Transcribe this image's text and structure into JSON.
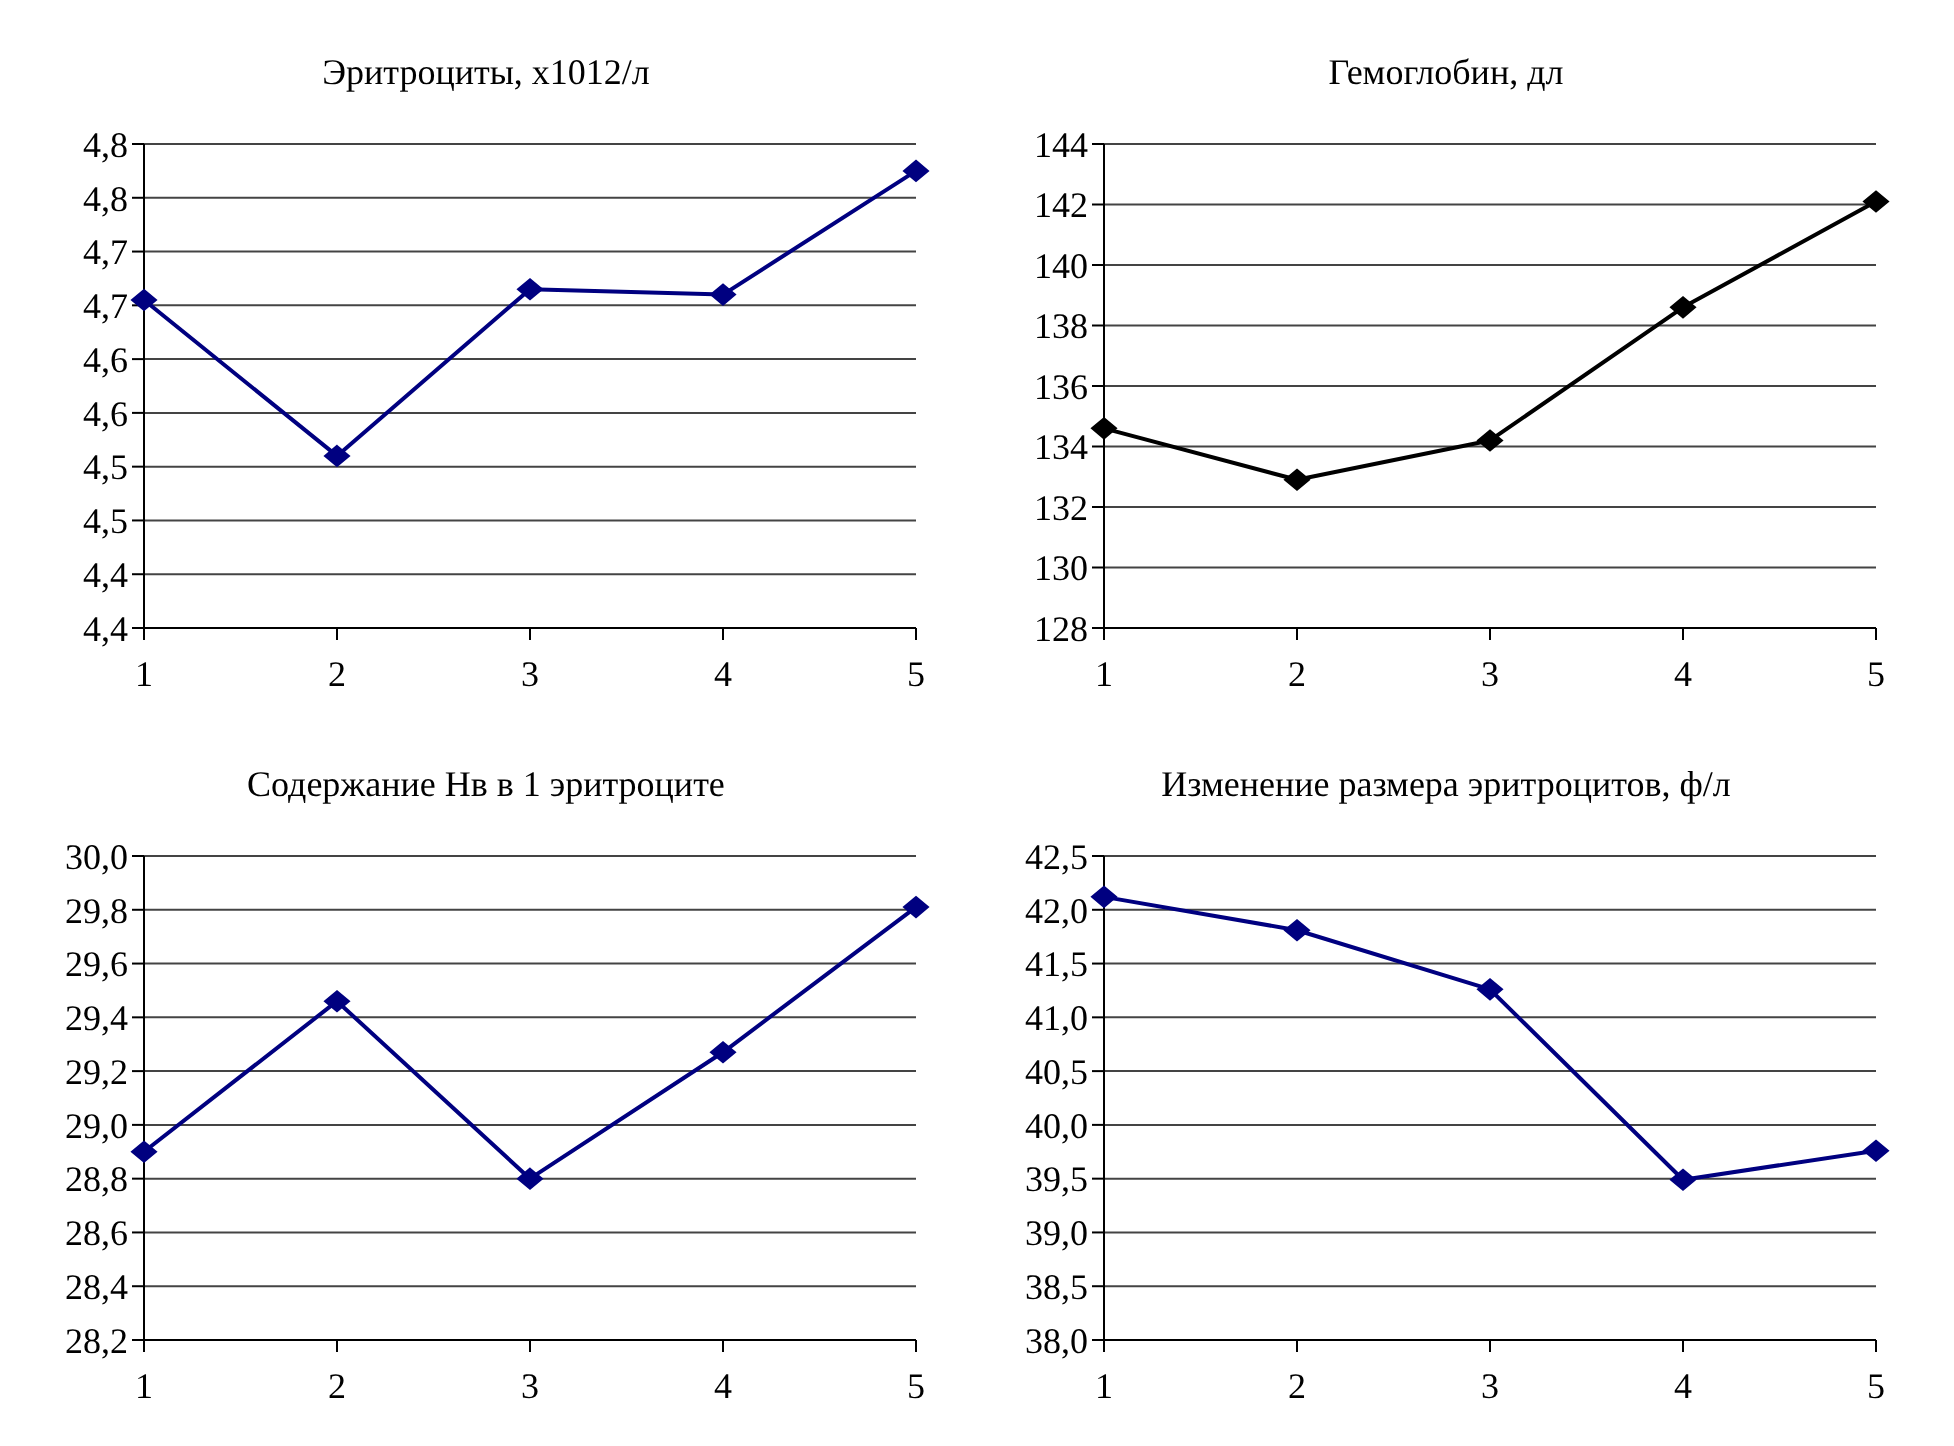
{
  "chart_data": [
    {
      "type": "line",
      "title": "Эритроциты, х1012/л",
      "categories": [
        "1",
        "2",
        "3",
        "4",
        "5"
      ],
      "series": [
        {
          "color": "#000080",
          "values": [
            4.655,
            4.51,
            4.665,
            4.66,
            4.775
          ]
        }
      ],
      "ylim": [
        4.35,
        4.8
      ],
      "yticks": [
        {
          "value": 4.35,
          "label": "4,4"
        },
        {
          "value": 4.4,
          "label": "4,4"
        },
        {
          "value": 4.45,
          "label": "4,5"
        },
        {
          "value": 4.5,
          "label": "4,5"
        },
        {
          "value": 4.55,
          "label": "4,6"
        },
        {
          "value": 4.6,
          "label": "4,6"
        },
        {
          "value": 4.65,
          "label": "4,7"
        },
        {
          "value": 4.7,
          "label": "4,7"
        },
        {
          "value": 4.75,
          "label": "4,8"
        },
        {
          "value": 4.8,
          "label": "4,8"
        }
      ],
      "grid": "y",
      "marker": "diamond"
    },
    {
      "type": "line",
      "title": "Гемоглобин, дл",
      "categories": [
        "1",
        "2",
        "3",
        "4",
        "5"
      ],
      "series": [
        {
          "color": "#000000",
          "values": [
            134.6,
            132.9,
            134.2,
            138.6,
            142.1
          ]
        }
      ],
      "ylim": [
        128,
        144
      ],
      "yticks": [
        128,
        130,
        132,
        134,
        136,
        138,
        140,
        142,
        144
      ],
      "grid": "y",
      "marker": "diamond"
    },
    {
      "type": "line",
      "title": "Содержание Нв в 1 эритроците",
      "categories": [
        "1",
        "2",
        "3",
        "4",
        "5"
      ],
      "series": [
        {
          "color": "#000080",
          "values": [
            28.9,
            29.46,
            28.8,
            29.27,
            29.81
          ]
        }
      ],
      "ylim": [
        28.2,
        30.0
      ],
      "yticks": [
        {
          "value": 28.2,
          "label": "28,2"
        },
        {
          "value": 28.4,
          "label": "28,4"
        },
        {
          "value": 28.6,
          "label": "28,6"
        },
        {
          "value": 28.8,
          "label": "28,8"
        },
        {
          "value": 29.0,
          "label": "29,0"
        },
        {
          "value": 29.2,
          "label": "29,2"
        },
        {
          "value": 29.4,
          "label": "29,4"
        },
        {
          "value": 29.6,
          "label": "29,6"
        },
        {
          "value": 29.8,
          "label": "29,8"
        },
        {
          "value": 30.0,
          "label": "30,0"
        }
      ],
      "grid": "y",
      "marker": "diamond"
    },
    {
      "type": "line",
      "title": "Изменение размера эритроцитов, ф/л",
      "categories": [
        "1",
        "2",
        "3",
        "4",
        "5"
      ],
      "series": [
        {
          "color": "#000080",
          "values": [
            42.12,
            41.81,
            41.26,
            39.49,
            39.76
          ]
        }
      ],
      "ylim": [
        38.0,
        42.5
      ],
      "yticks": [
        {
          "value": 38.0,
          "label": "38,0"
        },
        {
          "value": 38.5,
          "label": "38,5"
        },
        {
          "value": 39.0,
          "label": "39,0"
        },
        {
          "value": 39.5,
          "label": "39,5"
        },
        {
          "value": 40.0,
          "label": "40,0"
        },
        {
          "value": 40.5,
          "label": "40,5"
        },
        {
          "value": 41.0,
          "label": "41,0"
        },
        {
          "value": 41.5,
          "label": "41,5"
        },
        {
          "value": 42.0,
          "label": "42,0"
        },
        {
          "value": 42.5,
          "label": "42,5"
        }
      ],
      "grid": "y",
      "marker": "diamond"
    }
  ]
}
